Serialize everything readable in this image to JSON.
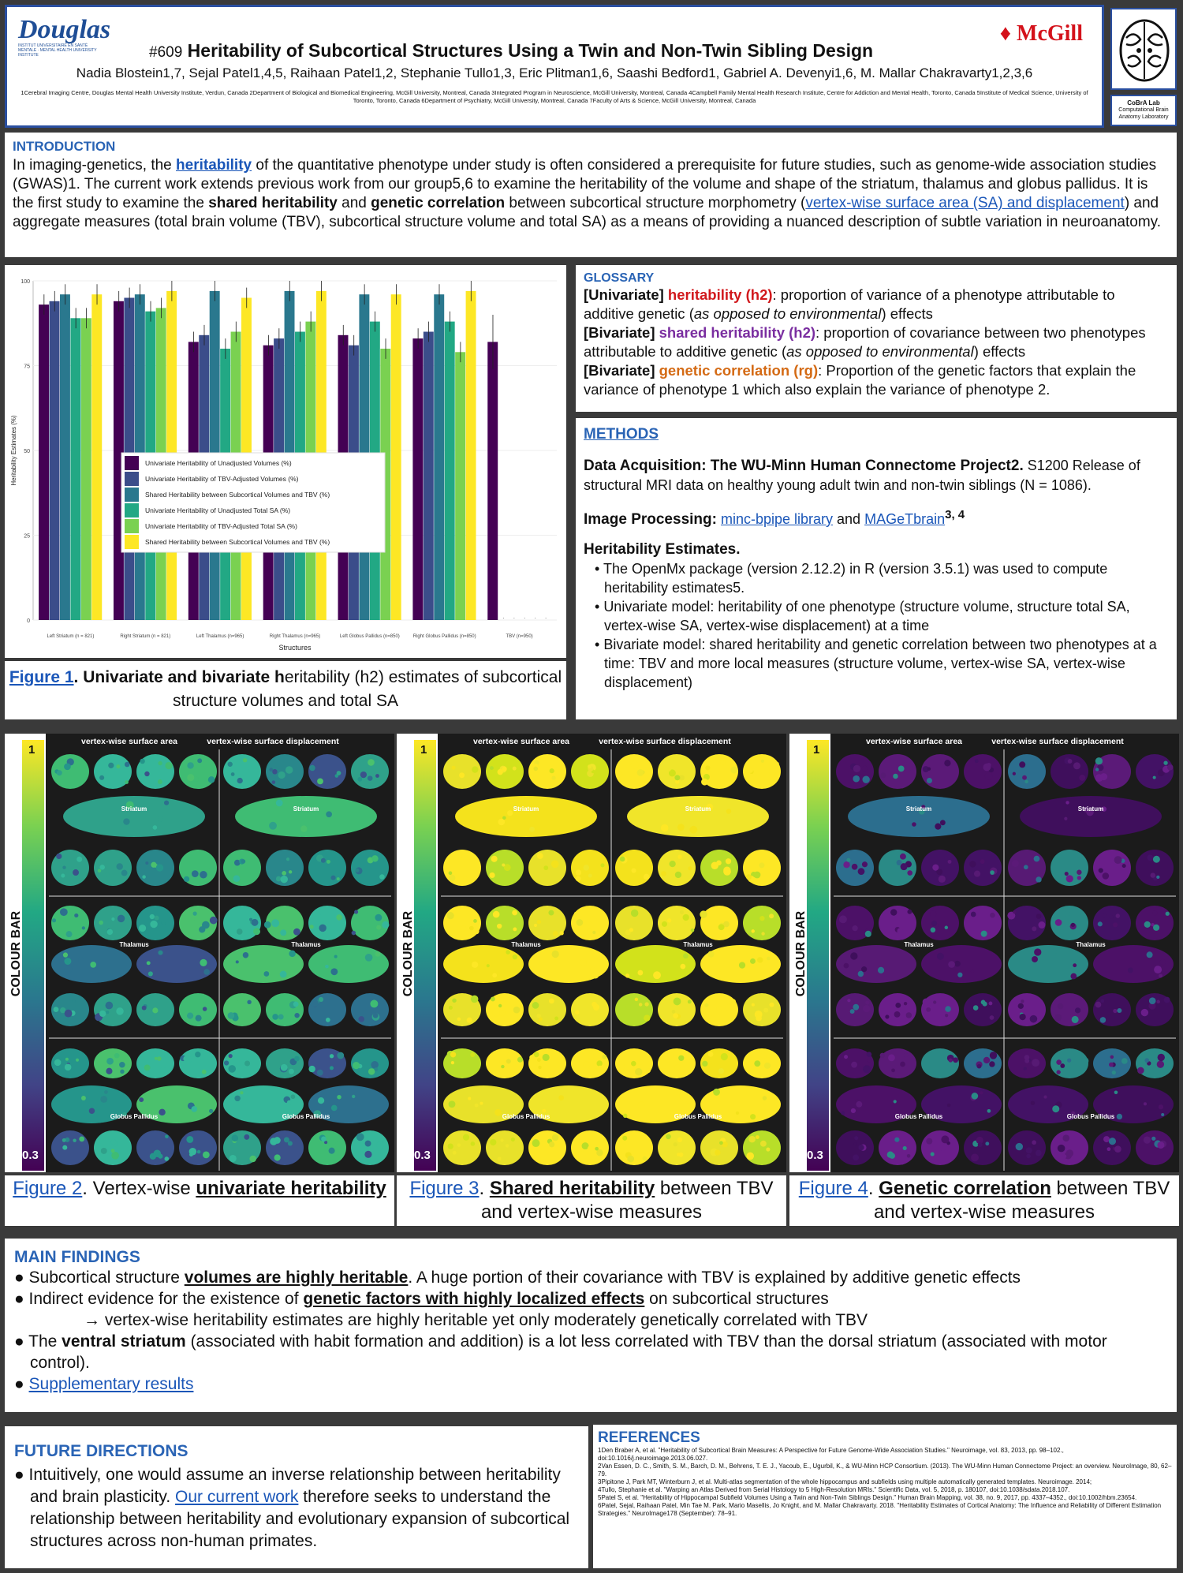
{
  "header": {
    "douglas_logo": "Douglas",
    "douglas_sub": "INSTITUT UNIVERSITAIRE EN SANTÉ MENTALE · MENTAL HEALTH UNIVERSITY INSTITUTE",
    "mcgill_logo": "McGill",
    "poster_number": "#609",
    "title": "Heritability of Subcortical Structures Using a Twin and Non-Twin Sibling Design",
    "authors": "Nadia Blostein1,7, Sejal Patel1,4,5, Raihaan Patel1,2, Stephanie Tullo1,3, Eric Plitman1,6, Saashi Bedford1, Gabriel A. Devenyi1,6, M. Mallar Chakravarty1,2,3,6",
    "affiliations": "1Cerebral Imaging Centre, Douglas Mental Health University Institute, Verdun, Canada 2Department of Biological and Biomedical Engineering, McGill University, Montreal, Canada 3Integrated Program in Neuroscience, McGill University, Montreal, Canada 4Campbell Family Mental Health Research Institute, Centre for Addiction and Mental Health, Toronto, Canada 5Institute of Medical Science, University of Toronto, Toronto, Canada 6Department of Psychiatry, McGill University, Montreal, Canada 7Faculty of Arts & Science, McGill University, Montreal, Canada",
    "cobra_title": "CoBrA Lab",
    "cobra_sub": "Computational Brain Anatomy Laboratory"
  },
  "intro": {
    "title": "INTRODUCTION",
    "t1": "In imaging-genetics, the ",
    "link_heritability": "heritability",
    "t2": " of the quantitative phenotype under study is often considered a prerequisite for future studies, such as  genome-wide association studies (GWAS)1. The current work extends previous work from our group5,6 to examine the heritability of the volume and shape of the striatum, thalamus and globus pallidus. It is the first study to examine the ",
    "b1": "shared heritability",
    "t3": " and ",
    "b2": "genetic correlation",
    "t4": " between subcortical structure morphometry (",
    "link_vertex": "vertex-wise surface area (SA) and displacement",
    "t5": ") and aggregate measures (total brain volume (TBV), subcortical structure volume and total SA) as a means of providing a nuanced description of subtle variation in neuroanatomy."
  },
  "figure1": {
    "caption_label": "Figure 1",
    "caption_bold": ". Univariate and bivariate h",
    "caption_rest": "eritability (h2) estimates of subcortical structure volumes and total SA"
  },
  "chart_data": {
    "type": "bar",
    "title": "",
    "xlabel": "Structures",
    "ylabel": "Heritability Estimates (%)",
    "ylim": [
      0,
      100
    ],
    "yticks": [
      0,
      25,
      50,
      75,
      100
    ],
    "categories": [
      "Left Striatum (n = 821)",
      "Right Striatum (n = 821)",
      "Left Thalamus (n=965)",
      "Right Thalamus (n=965)",
      "Left Globus Pallidus (n=850)",
      "Right Globus Pallidus (n=850)",
      "TBV (n=950)"
    ],
    "legend_placement": "center-left",
    "series": [
      {
        "name": "Univariate Heritability of Unadjusted Volumes (%)",
        "color": "#440154",
        "values": [
          93,
          94,
          82,
          81,
          84,
          83,
          82
        ]
      },
      {
        "name": "Univariate Heritability of TBV-Adjusted Volumes (%)",
        "color": "#3b4d8a",
        "values": [
          94,
          95,
          84,
          83,
          81,
          85,
          null
        ]
      },
      {
        "name": "Shared Heritability between Subcortical Volumes and TBV (%)",
        "color": "#2a788e",
        "values": [
          96,
          96,
          97,
          97,
          96,
          96,
          null
        ]
      },
      {
        "name": "Univariate Heritability of Unadjusted Total SA (%)",
        "color": "#22a884",
        "values": [
          89,
          91,
          80,
          85,
          88,
          88,
          null
        ]
      },
      {
        "name": "Univariate Heritability of TBV-Adjusted Total SA (%)",
        "color": "#7ad151",
        "values": [
          89,
          92,
          85,
          88,
          80,
          79,
          null
        ]
      },
      {
        "name": "Shared Heritability between Subcortical Volumes and TBV (%)",
        "color": "#fde725",
        "values": [
          96,
          97,
          95,
          97,
          96,
          97,
          null
        ]
      }
    ]
  },
  "glossary": {
    "title": "GLOSSARY",
    "g1_tag": "[Univariate]",
    "g1_term": "heritability (h2)",
    "g1_def_a": ": proportion of variance of a phenotype attributable to additive genetic (",
    "g1_def_it": "as opposed to environmental",
    "g1_def_b": ") effects",
    "g2_tag": "[Bivariate]",
    "g2_term": "shared heritability (h2)",
    "g2_def_a": ": proportion of covariance between two phenotypes attributable to additive genetic (",
    "g2_def_it": "as opposed to environmental",
    "g2_def_b": ") effects",
    "g3_tag": "[Bivariate]",
    "g3_term": "genetic correlation (rg)",
    "g3_def": ": Proportion of the genetic factors that explain the variance of phenotype 1 which also explain the variance of phenotype 2."
  },
  "methods": {
    "title": "METHODS",
    "acq_head": "Data Acquisition: The WU-Minn Human Connectome Project2.",
    "acq_text": " S1200 Release of structural MRI data on healthy young adult twin and non-twin siblings (N = 1086).",
    "proc_head": "Image Processing:",
    "proc_link1": "minc-bpipe library",
    "proc_and": " and ",
    "proc_link2": "MAGeTbrain",
    "proc_sup": "3, 4",
    "her_head": "Heritability Estimates.",
    "b1": "The OpenMx package (version 2.12.2) in R (version 3.5.1) was used to compute heritability estimates5.",
    "b2": "Univariate model: heritability of one phenotype (structure volume, structure total SA, vertex-wise SA, vertex-wise displacement) at a time",
    "b3": "Bivariate model: shared heritability and genetic correlation between two phenotypes at a time: TBV and more local measures (structure volume, vertex-wise SA, vertex-wise displacement)"
  },
  "brainfigs": {
    "col_sa": "vertex-wise surface area",
    "col_disp": "vertex-wise surface displacement",
    "cbar_title": "COLOUR BAR",
    "cbar_max": "1",
    "cbar_min": "0.3",
    "label_striatum": "Striatum",
    "label_thalamus": "Thalamus",
    "label_gp": "Globus Pallidus",
    "fig2_label": "Figure 2",
    "fig2_a": ". Vertex-wise ",
    "fig2_b": "univariate heritability",
    "fig3_label": "Figure 3",
    "fig3_a": ". ",
    "fig3_b": "Shared heritability",
    "fig3_c": " between TBV and vertex-wise measures",
    "fig4_label": "Figure 4",
    "fig4_a": ". ",
    "fig4_b": "Genetic correlation",
    "fig4_c": " between TBV and vertex-wise measures"
  },
  "findings": {
    "title": "MAIN FINDINGS",
    "f1a": "● Subcortical structure ",
    "f1b": "volumes are highly heritable",
    "f1c": ". A huge portion of their covariance with TBV is explained by additive genetic effects",
    "f2a": "● Indirect evidence for the existence of ",
    "f2b": "genetic factors with highly localized effects",
    "f2c": " on subcortical structures",
    "f3": "→ vertex-wise heritability estimates are highly heritable yet only moderately genetically correlated with TBV",
    "f4a": "● The ",
    "f4b": "ventral striatum",
    "f4c": " (associated with habit formation and addition) is a lot less correlated with TBV than the dorsal striatum (associated with motor control).",
    "f5a": "● ",
    "f5_link": "Supplementary results"
  },
  "future": {
    "title": "FUTURE DIRECTIONS",
    "t1": "● Intuitively, one would assume an inverse relationship between heritability and brain plasticity. ",
    "link": "Our current work",
    "t2": " therefore seeks to understand the relationship between heritability and evolutionary expansion of subcortical structures across non-human primates."
  },
  "refs": {
    "title": "REFERENCES",
    "r1": "1Den Braber A, et al. \"Heritability of Subcortical Brain Measures: A Perspective for Future Genome-Wide Association Studies.\" Neuroimage, vol. 83, 2013, pp. 98–102., doi:10.1016/j.neuroimage.2013.06.027.",
    "r2": "2Van Essen, D. C., Smith, S. M., Barch, D. M., Behrens, T. E. J., Yacoub, E., Ugurbil, K., & WU-Minn HCP Consortium. (2013). The WU-Minn Human Connectome Project: an overview. NeuroImage, 80, 62–79.",
    "r3": "3Pipitone J, Park MT, Winterburn J, et al. Multi-atlas segmentation of the whole hippocampus and subfields using multiple automatically generated templates. Neuroimage. 2014;",
    "r4": "4Tullo, Stephanie et al. \"Warping an Atlas Derived from Serial Histology to 5 High-Resolution MRIs.\" Scientific Data, vol. 5, 2018, p. 180107, doi:10.1038/sdata.2018.107.",
    "r5": "5Patel S, et al. \"Heritability of Hippocampal Subfield Volumes Using a Twin and Non-Twin Siblings Design.\" Human Brain Mapping, vol. 38, no. 9, 2017, pp. 4337–4352., doi:10.1002/hbm.23654.",
    "r6": "6Patel, Sejal, Raihaan Patel, Min Tae M. Park, Mario Masellis, Jo Knight, and M. Mallar Chakravarty. 2018. \"Heritability Estimates of Cortical Anatomy: The Influence and Reliability of Different Estimation Strategies.\" NeuroImage178 (September): 78–91."
  }
}
